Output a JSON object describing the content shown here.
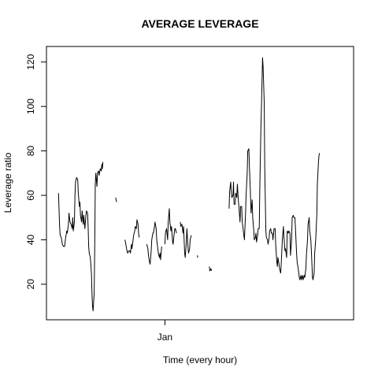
{
  "chart_data": {
    "type": "line",
    "title": "AVERAGE LEVERAGE",
    "xlabel": "Time (every hour)",
    "ylabel": "Leverage ratio",
    "x_ticks": [
      {
        "label": "Jan",
        "value": 216
      }
    ],
    "y_ticks": [
      20,
      40,
      60,
      80,
      100,
      120
    ],
    "xlim": [
      0,
      560
    ],
    "ylim": [
      4,
      127
    ],
    "grid": false,
    "legend": "none",
    "line_color": "#000000",
    "series": [
      {
        "segments": [
          [
            [
              22,
              61
            ],
            [
              24,
              46
            ],
            [
              25,
              42
            ],
            [
              27,
              41
            ],
            [
              29,
              38
            ],
            [
              31,
              37
            ],
            [
              33,
              37
            ],
            [
              35,
              41
            ],
            [
              37,
              44
            ],
            [
              38,
              43
            ],
            [
              40,
              47
            ],
            [
              41,
              52
            ],
            [
              43,
              48
            ],
            [
              45,
              47
            ],
            [
              47,
              45
            ],
            [
              48,
              50
            ],
            [
              49,
              44
            ],
            [
              51,
              48
            ],
            [
              52,
              60
            ],
            [
              53,
              66
            ],
            [
              55,
              68
            ],
            [
              57,
              67
            ],
            [
              58,
              61
            ],
            [
              60,
              55
            ],
            [
              61,
              57
            ],
            [
              62,
              51
            ],
            [
              64,
              48
            ],
            [
              65,
              53
            ],
            [
              67,
              47
            ],
            [
              68,
              51
            ],
            [
              70,
              45
            ],
            [
              72,
              51
            ],
            [
              73,
              53
            ],
            [
              75,
              52
            ],
            [
              76,
              46
            ],
            [
              77,
              37
            ],
            [
              78,
              34
            ],
            [
              80,
              32
            ],
            [
              82,
              25
            ],
            [
              83,
              16
            ],
            [
              84,
              10
            ],
            [
              85,
              8
            ],
            [
              86,
              12
            ],
            [
              87,
              16
            ],
            [
              88,
              37
            ],
            [
              89,
              65
            ],
            [
              90,
              70
            ],
            [
              91,
              67
            ],
            [
              92,
              64
            ],
            [
              93,
              70
            ],
            [
              95,
              71
            ],
            [
              96,
              69
            ],
            [
              98,
              72
            ],
            [
              100,
              71
            ],
            [
              101,
              74
            ],
            [
              102,
              72
            ],
            [
              103,
              75
            ]
          ],
          [
            [
              126,
              59
            ],
            [
              128,
              57
            ]
          ],
          [
            [
              143,
              40
            ],
            [
              144,
              39
            ],
            [
              146,
              36
            ],
            [
              148,
              34
            ],
            [
              150,
              35
            ],
            [
              152,
              35
            ],
            [
              153,
              34
            ],
            [
              155,
              38
            ],
            [
              156,
              36
            ],
            [
              158,
              40
            ],
            [
              159,
              42
            ],
            [
              161,
              44
            ],
            [
              162,
              46
            ],
            [
              164,
              45
            ],
            [
              165,
              49
            ],
            [
              167,
              47
            ],
            [
              168,
              43
            ],
            [
              169,
              41
            ]
          ],
          [
            [
              183,
              38
            ],
            [
              185,
              36
            ],
            [
              186,
              33
            ],
            [
              188,
              30
            ],
            [
              189,
              29
            ],
            [
              191,
              35
            ],
            [
              192,
              40
            ],
            [
              194,
              43
            ],
            [
              195,
              43
            ],
            [
              197,
              46
            ],
            [
              198,
              48
            ],
            [
              200,
              45
            ],
            [
              201,
              40
            ],
            [
              203,
              36
            ],
            [
              204,
              34
            ],
            [
              206,
              32
            ],
            [
              207,
              34
            ],
            [
              208,
              31
            ],
            [
              210,
              37
            ]
          ],
          [
            [
              216,
              38
            ],
            [
              217,
              43
            ],
            [
              219,
              45
            ],
            [
              221,
              40
            ],
            [
              222,
              48
            ],
            [
              224,
              54
            ],
            [
              225,
              48
            ],
            [
              227,
              44
            ],
            [
              228,
              46
            ],
            [
              230,
              39
            ],
            [
              231,
              38
            ],
            [
              232,
              41
            ],
            [
              234,
              45
            ],
            [
              235,
              45
            ],
            [
              237,
              43
            ]
          ],
          [
            [
              244,
              48
            ],
            [
              245,
              46
            ],
            [
              247,
              47
            ],
            [
              249,
              43
            ],
            [
              250,
              46
            ],
            [
              252,
              34
            ],
            [
              253,
              32
            ],
            [
              255,
              39
            ],
            [
              256,
              45
            ],
            [
              258,
              37
            ],
            [
              259,
              34
            ],
            [
              261,
              36
            ],
            [
              262,
              40
            ],
            [
              264,
              42
            ]
          ],
          [
            [
              275,
              33
            ],
            [
              276,
              32
            ]
          ],
          [
            [
              297,
              28
            ],
            [
              298,
              26
            ],
            [
              300,
              27
            ],
            [
              301,
              26
            ]
          ],
          [
            [
              333,
              54
            ],
            [
              334,
              62
            ],
            [
              336,
              66
            ],
            [
              337,
              61
            ],
            [
              338,
              59
            ],
            [
              340,
              60
            ],
            [
              341,
              66
            ],
            [
              342,
              56
            ],
            [
              344,
              56
            ],
            [
              345,
              61
            ],
            [
              347,
              59
            ],
            [
              348,
              65
            ],
            [
              350,
              57
            ],
            [
              351,
              55
            ],
            [
              353,
              48
            ],
            [
              354,
              55
            ],
            [
              356,
              55
            ],
            [
              357,
              48
            ],
            [
              358,
              46
            ],
            [
              360,
              42
            ],
            [
              361,
              40
            ],
            [
              363,
              52
            ],
            [
              364,
              60
            ],
            [
              366,
              70
            ],
            [
              367,
              80
            ],
            [
              369,
              81
            ],
            [
              370,
              73
            ],
            [
              372,
              60
            ],
            [
              373,
              52
            ],
            [
              375,
              58
            ],
            [
              376,
              50
            ],
            [
              378,
              44
            ],
            [
              379,
              40
            ],
            [
              381,
              41
            ],
            [
              382,
              43
            ],
            [
              383,
              39
            ],
            [
              385,
              42
            ],
            [
              386,
              45
            ],
            [
              388,
              45
            ],
            [
              389,
              63
            ],
            [
              391,
              90
            ],
            [
              392,
              100
            ],
            [
              394,
              122
            ],
            [
              395,
              118
            ],
            [
              397,
              102
            ],
            [
              398,
              72
            ],
            [
              400,
              44
            ],
            [
              401,
              41
            ],
            [
              403,
              40
            ],
            [
              404,
              38
            ],
            [
              406,
              41
            ],
            [
              407,
              44
            ],
            [
              409,
              45
            ],
            [
              410,
              43
            ],
            [
              412,
              43
            ],
            [
              413,
              40
            ],
            [
              415,
              45
            ],
            [
              417,
              45
            ],
            [
              418,
              38
            ],
            [
              420,
              30
            ],
            [
              421,
              28
            ],
            [
              422,
              32
            ],
            [
              424,
              29
            ],
            [
              425,
              27
            ],
            [
              427,
              25
            ],
            [
              428,
              29
            ],
            [
              430,
              40
            ],
            [
              432,
              46
            ],
            [
              433,
              41
            ],
            [
              435,
              35
            ],
            [
              436,
              36
            ],
            [
              438,
              32
            ],
            [
              439,
              44
            ],
            [
              441,
              43
            ],
            [
              442,
              44
            ],
            [
              444,
              43
            ],
            [
              445,
              33
            ],
            [
              447,
              40
            ],
            [
              448,
              50
            ],
            [
              450,
              51
            ],
            [
              451,
              50
            ],
            [
              453,
              50
            ],
            [
              454,
              45
            ],
            [
              456,
              34
            ],
            [
              457,
              30
            ],
            [
              459,
              27
            ],
            [
              461,
              23
            ],
            [
              462,
              22
            ],
            [
              464,
              24
            ],
            [
              465,
              22
            ],
            [
              467,
              24
            ],
            [
              468,
              22
            ],
            [
              470,
              24
            ],
            [
              471,
              23
            ],
            [
              473,
              27
            ],
            [
              474,
              33
            ],
            [
              476,
              40
            ],
            [
              477,
              47
            ],
            [
              479,
              50
            ],
            [
              480,
              44
            ],
            [
              482,
              40
            ],
            [
              483,
              35
            ],
            [
              485,
              23
            ],
            [
              486,
              22
            ],
            [
              488,
              25
            ],
            [
              489,
              34
            ],
            [
              491,
              40
            ],
            [
              493,
              51
            ],
            [
              494,
              65
            ],
            [
              496,
              75
            ],
            [
              497,
              78
            ],
            [
              498,
              79
            ]
          ]
        ]
      }
    ]
  }
}
